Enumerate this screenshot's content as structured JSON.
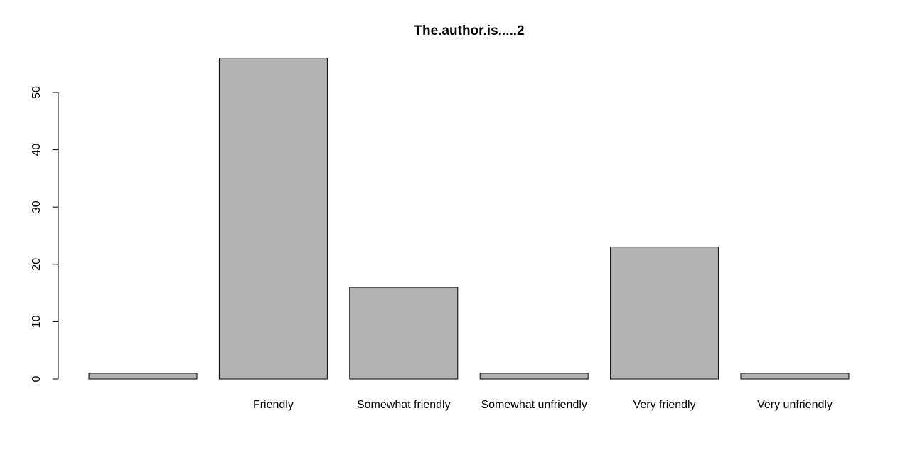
{
  "chart_data": {
    "type": "bar",
    "title": "The.author.is.....2",
    "xlabel": "",
    "ylabel": "",
    "categories": [
      "",
      "Friendly",
      "Somewhat friendly",
      "Somewhat unfriendly",
      "Very friendly",
      "Very unfriendly"
    ],
    "values": [
      1,
      56,
      16,
      1,
      23,
      1
    ],
    "ylim": [
      0,
      56
    ],
    "yticks": [
      0,
      10,
      20,
      30,
      40,
      50
    ],
    "grid": false,
    "legend": "none",
    "bar_color": "#b2b2b2",
    "edge_color": "#000000"
  }
}
